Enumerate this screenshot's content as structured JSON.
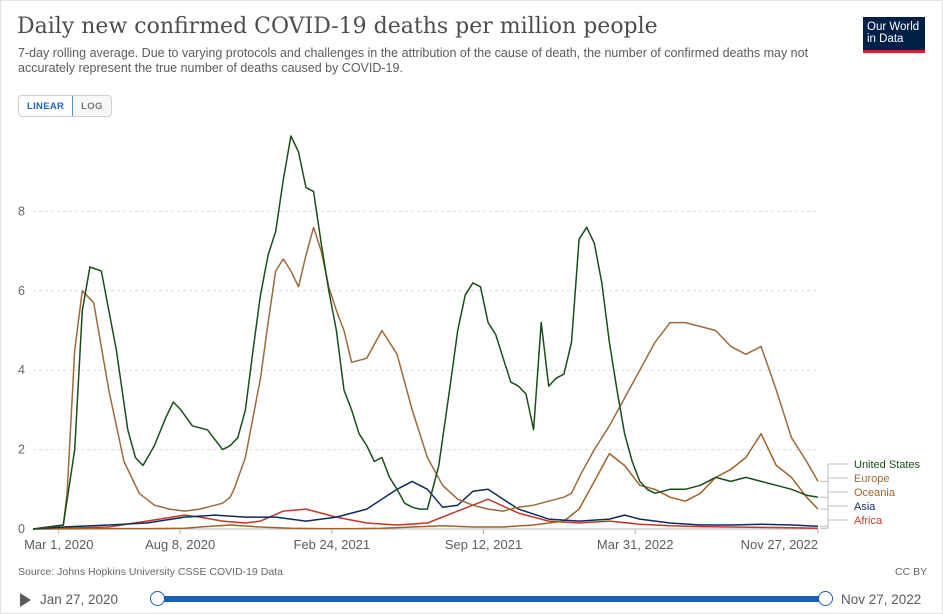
{
  "header": {
    "title": "Daily new confirmed COVID-19 deaths per million people",
    "subtitle": "7-day rolling average. Due to varying protocols and challenges in the attribution of the cause of death, the number of confirmed deaths may not accurately represent the true number of deaths caused by COVID-19.",
    "logo_line1": "Our World",
    "logo_line2": "in Data"
  },
  "scale_toggle": {
    "linear": "LINEAR",
    "log": "LOG",
    "selected": "linear"
  },
  "footer": {
    "source": "Source: Johns Hopkins University CSSE COVID-19 Data",
    "license": "CC BY"
  },
  "timeline": {
    "start": "Jan 27, 2020",
    "end": "Nov 27, 2022"
  },
  "colors": {
    "United States": "#1a4d1a",
    "Europe": "#9c6a3c",
    "Oceania": "#a0642b",
    "Asia": "#0e2b59",
    "Africa": "#c0392b"
  },
  "chart_data": {
    "type": "line",
    "title": "Daily new confirmed COVID-19 deaths per million people",
    "xlabel": "",
    "ylabel": "",
    "x_unit": "days since Jan 27, 2020",
    "xlim": [
      0,
      1035
    ],
    "ylim": [
      0,
      10
    ],
    "yticks": [
      0,
      2,
      4,
      6,
      8
    ],
    "ytick_labels": [
      "0",
      "2",
      "4",
      "6",
      "8"
    ],
    "xticks": [
      34,
      194,
      394,
      594,
      794,
      1035
    ],
    "xtick_labels": [
      "Mar 1, 2020",
      "Aug 8, 2020",
      "Feb 24, 2021",
      "Sep 12, 2021",
      "Mar 31, 2022",
      "Nov 27, 2022"
    ],
    "grid": "horizontal dashed",
    "series": [
      {
        "name": "United States",
        "x": [
          0,
          40,
          55,
          65,
          75,
          90,
          110,
          125,
          135,
          145,
          160,
          175,
          185,
          195,
          210,
          230,
          250,
          260,
          270,
          280,
          290,
          300,
          310,
          320,
          330,
          340,
          350,
          360,
          370,
          380,
          390,
          400,
          410,
          420,
          430,
          440,
          450,
          460,
          470,
          480,
          490,
          500,
          510,
          520,
          535,
          550,
          560,
          570,
          580,
          590,
          600,
          610,
          620,
          630,
          640,
          650,
          660,
          670,
          680,
          690,
          700,
          710,
          720,
          730,
          740,
          750,
          760,
          770,
          780,
          790,
          800,
          810,
          820,
          840,
          860,
          880,
          900,
          920,
          940,
          960,
          980,
          1000,
          1020,
          1035
        ],
        "y": [
          0,
          0.1,
          2.0,
          5.5,
          6.6,
          6.5,
          4.5,
          2.5,
          1.8,
          1.6,
          2.1,
          2.8,
          3.2,
          3.0,
          2.6,
          2.5,
          2.0,
          2.1,
          2.3,
          3.0,
          4.5,
          5.9,
          6.9,
          7.5,
          8.8,
          9.9,
          9.5,
          8.6,
          8.5,
          7.2,
          6.0,
          5.0,
          3.5,
          3.0,
          2.4,
          2.1,
          1.7,
          1.8,
          1.3,
          1.0,
          0.65,
          0.55,
          0.5,
          0.5,
          1.6,
          3.6,
          5.0,
          5.9,
          6.2,
          6.1,
          5.2,
          4.9,
          4.3,
          3.7,
          3.6,
          3.4,
          2.5,
          5.2,
          3.6,
          3.8,
          3.9,
          4.7,
          7.3,
          7.6,
          7.2,
          6.2,
          4.7,
          3.5,
          2.4,
          1.7,
          1.2,
          1.0,
          0.9,
          1.0,
          1.0,
          1.1,
          1.3,
          1.2,
          1.3,
          1.2,
          1.1,
          1.0,
          0.85,
          0.8
        ]
      },
      {
        "name": "Europe",
        "x": [
          0,
          40,
          45,
          55,
          65,
          80,
          100,
          120,
          140,
          160,
          180,
          200,
          220,
          240,
          250,
          260,
          265,
          280,
          300,
          310,
          320,
          330,
          340,
          350,
          360,
          370,
          380,
          390,
          400,
          410,
          420,
          440,
          460,
          480,
          500,
          520,
          540,
          560,
          580,
          600,
          620,
          640,
          660,
          680,
          700,
          710,
          720,
          740,
          760,
          780,
          800,
          820,
          840,
          860,
          880,
          900,
          920,
          940,
          960,
          980,
          1000,
          1020,
          1035
        ],
        "y": [
          0,
          0.1,
          0.9,
          4.5,
          6.0,
          5.7,
          3.5,
          1.7,
          0.9,
          0.6,
          0.5,
          0.45,
          0.5,
          0.6,
          0.65,
          0.8,
          1.0,
          1.8,
          3.8,
          5.2,
          6.5,
          6.8,
          6.5,
          6.1,
          6.9,
          7.6,
          7.0,
          6.1,
          5.5,
          5.0,
          4.2,
          4.3,
          5.0,
          4.4,
          3.0,
          1.8,
          1.1,
          0.75,
          0.6,
          0.5,
          0.45,
          0.55,
          0.6,
          0.7,
          0.8,
          0.9,
          1.3,
          2.0,
          2.6,
          3.3,
          4.0,
          4.7,
          5.2,
          5.2,
          5.1,
          5.0,
          4.6,
          4.4,
          4.6,
          3.5,
          2.3,
          1.7,
          1.2
        ]
      },
      {
        "name": "Oceania",
        "x": [
          0,
          150,
          200,
          220,
          260,
          300,
          340,
          380,
          420,
          460,
          500,
          540,
          580,
          620,
          660,
          700,
          720,
          740,
          760,
          780,
          800,
          820,
          840,
          860,
          880,
          900,
          920,
          940,
          960,
          980,
          1000,
          1020,
          1035
        ],
        "y": [
          0,
          0.01,
          0.02,
          0.05,
          0.1,
          0.05,
          0.02,
          0.01,
          0.01,
          0.02,
          0.05,
          0.08,
          0.05,
          0.05,
          0.1,
          0.2,
          0.5,
          1.2,
          1.9,
          1.6,
          1.1,
          1.0,
          0.8,
          0.7,
          0.9,
          1.3,
          1.5,
          1.8,
          2.4,
          1.6,
          1.3,
          0.8,
          0.5
        ]
      },
      {
        "name": "Asia",
        "x": [
          0,
          40,
          100,
          150,
          200,
          240,
          280,
          320,
          360,
          400,
          440,
          480,
          500,
          520,
          540,
          560,
          580,
          600,
          620,
          640,
          680,
          720,
          760,
          780,
          800,
          840,
          880,
          920,
          960,
          1000,
          1035
        ],
        "y": [
          0,
          0.05,
          0.1,
          0.15,
          0.3,
          0.35,
          0.3,
          0.3,
          0.2,
          0.3,
          0.5,
          1.0,
          1.2,
          1.0,
          0.55,
          0.6,
          0.95,
          1.0,
          0.75,
          0.5,
          0.25,
          0.2,
          0.25,
          0.35,
          0.25,
          0.15,
          0.1,
          0.1,
          0.12,
          0.1,
          0.07
        ]
      },
      {
        "name": "Africa",
        "x": [
          0,
          100,
          150,
          200,
          220,
          250,
          280,
          300,
          330,
          360,
          400,
          440,
          480,
          520,
          560,
          600,
          640,
          680,
          720,
          760,
          800,
          840,
          880,
          920,
          960,
          1000,
          1035
        ],
        "y": [
          0,
          0.05,
          0.2,
          0.35,
          0.3,
          0.2,
          0.15,
          0.2,
          0.45,
          0.5,
          0.3,
          0.15,
          0.1,
          0.15,
          0.45,
          0.75,
          0.4,
          0.2,
          0.15,
          0.2,
          0.12,
          0.08,
          0.06,
          0.05,
          0.04,
          0.03,
          0.02
        ]
      }
    ],
    "legend_position": "right end of lines",
    "legend_order": [
      "United States",
      "Europe",
      "Oceania",
      "Asia",
      "Africa"
    ]
  }
}
